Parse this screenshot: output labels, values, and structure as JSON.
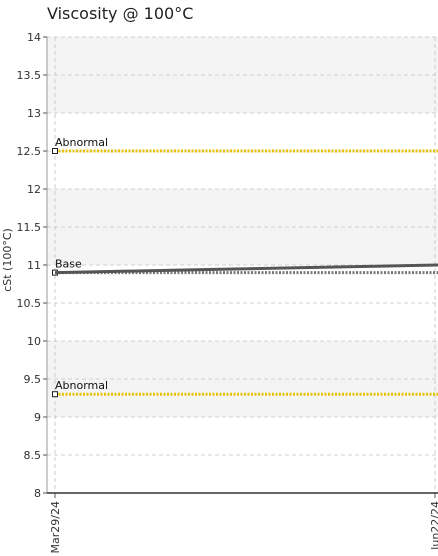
{
  "chart_data": {
    "type": "line",
    "title": "Viscosity @ 100°C",
    "ylabel": "cSt (100°C)",
    "xlabel": "",
    "ylim": [
      8,
      14
    ],
    "yticks": [
      "8",
      "8.5",
      "9",
      "9.5",
      "10",
      "10.5",
      "11",
      "11.5",
      "12",
      "12.5",
      "13",
      "13.5",
      "14"
    ],
    "xticks": [
      "Mar29/24",
      "Jun22/24"
    ],
    "grid": true,
    "series": [
      {
        "x": [
          0,
          0.2,
          0.4,
          0.6,
          0.8,
          1.0
        ],
        "values": [
          10.9,
          10.92,
          10.94,
          10.96,
          10.98,
          11.0
        ],
        "color": "#555555"
      }
    ],
    "reference_lines": [
      {
        "label": "Abnormal",
        "value": 12.5,
        "color": "#e6c200"
      },
      {
        "label": "Base",
        "value": 10.9,
        "color": "#777777"
      },
      {
        "label": "Abnormal",
        "value": 9.3,
        "color": "#e6c200"
      }
    ]
  }
}
